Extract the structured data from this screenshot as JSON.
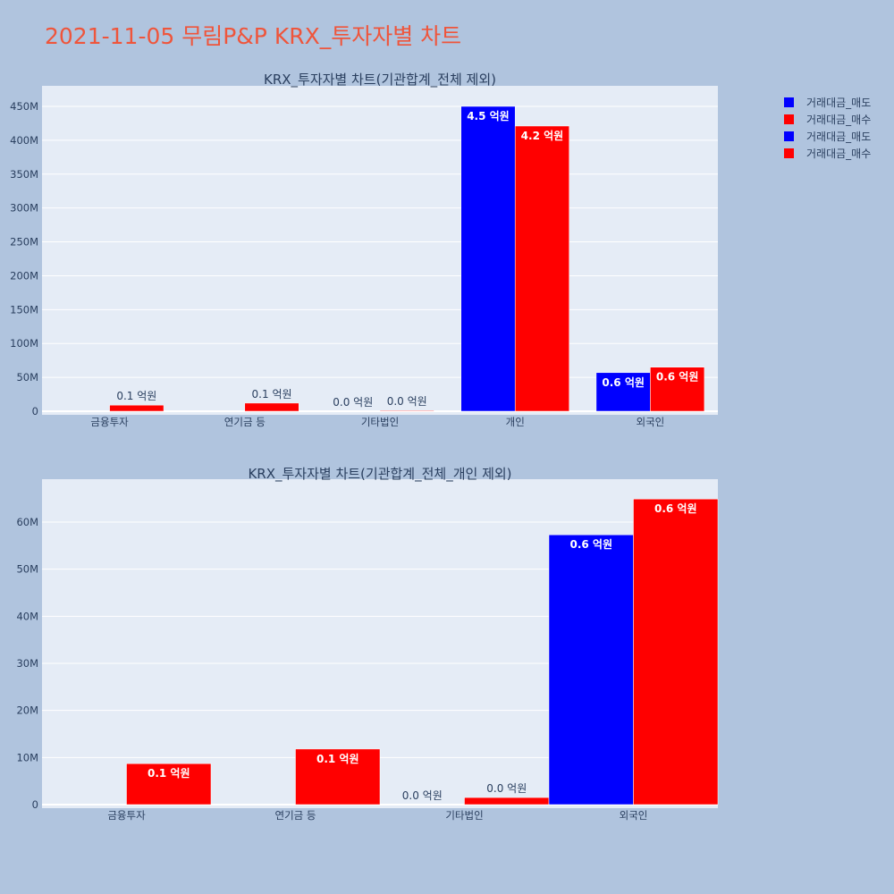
{
  "page": {
    "title": "2021-11-05 무림P&P KRX_투자자별 차트",
    "title_color": "#ef553b",
    "background": "#b0c4de",
    "plot_background": "#e5ecf6"
  },
  "legend": {
    "placement": "top-right",
    "entries": [
      {
        "label": "거래대금_매도",
        "color": "#0000ff"
      },
      {
        "label": "거래대금_매수",
        "color": "#ff0000"
      },
      {
        "label": "거래대금_매도",
        "color": "#0000ff"
      },
      {
        "label": "거래대금_매수",
        "color": "#ff0000"
      }
    ]
  },
  "chart_data": [
    {
      "type": "bar",
      "title": "KRX_투자자별 차트(기관합계_전체 제외)",
      "categories": [
        "금융투자",
        "연기금 등",
        "기타법인",
        "개인",
        "외국인"
      ],
      "ylim": [
        0,
        480000000
      ],
      "yticks": [
        0,
        50000000,
        100000000,
        150000000,
        200000000,
        250000000,
        300000000,
        350000000,
        400000000,
        450000000
      ],
      "ytick_labels": [
        "0",
        "50M",
        "100M",
        "150M",
        "200M",
        "250M",
        "300M",
        "350M",
        "400M",
        "450M"
      ],
      "grid": true,
      "series": [
        {
          "name": "거래대금_매도",
          "color": "#0000ff",
          "values": [
            0,
            0,
            0,
            450000000,
            57000000
          ],
          "labels": [
            "",
            "",
            "0.0 억원",
            "4.5 억원",
            "0.6 억원"
          ]
        },
        {
          "name": "거래대금_매수",
          "color": "#ff0000",
          "values": [
            9000000,
            12000000,
            1000000,
            421000000,
            65000000
          ],
          "labels": [
            "0.1 억원",
            "0.1 억원",
            "0.0 억원",
            "4.2 억원",
            "0.6 억원"
          ]
        }
      ]
    },
    {
      "type": "bar",
      "title": "KRX_투자자별 차트(기관합계_전체_개인 제외)",
      "categories": [
        "금융투자",
        "연기금 등",
        "기타법인",
        "외국인"
      ],
      "ylim": [
        0,
        69000000
      ],
      "yticks": [
        0,
        10000000,
        20000000,
        30000000,
        40000000,
        50000000,
        60000000
      ],
      "ytick_labels": [
        "0",
        "10M",
        "20M",
        "30M",
        "40M",
        "50M",
        "60M"
      ],
      "grid": true,
      "series": [
        {
          "name": "거래대금_매도",
          "color": "#0000ff",
          "values": [
            0,
            0,
            0,
            57300000
          ],
          "labels": [
            "",
            "",
            "0.0 억원",
            "0.6 억원"
          ]
        },
        {
          "name": "거래대금_매수",
          "color": "#ff0000",
          "values": [
            8700000,
            11800000,
            1500000,
            64900000
          ],
          "labels": [
            "0.1 억원",
            "0.1 억원",
            "0.0 억원",
            "0.6 억원"
          ]
        }
      ]
    }
  ]
}
